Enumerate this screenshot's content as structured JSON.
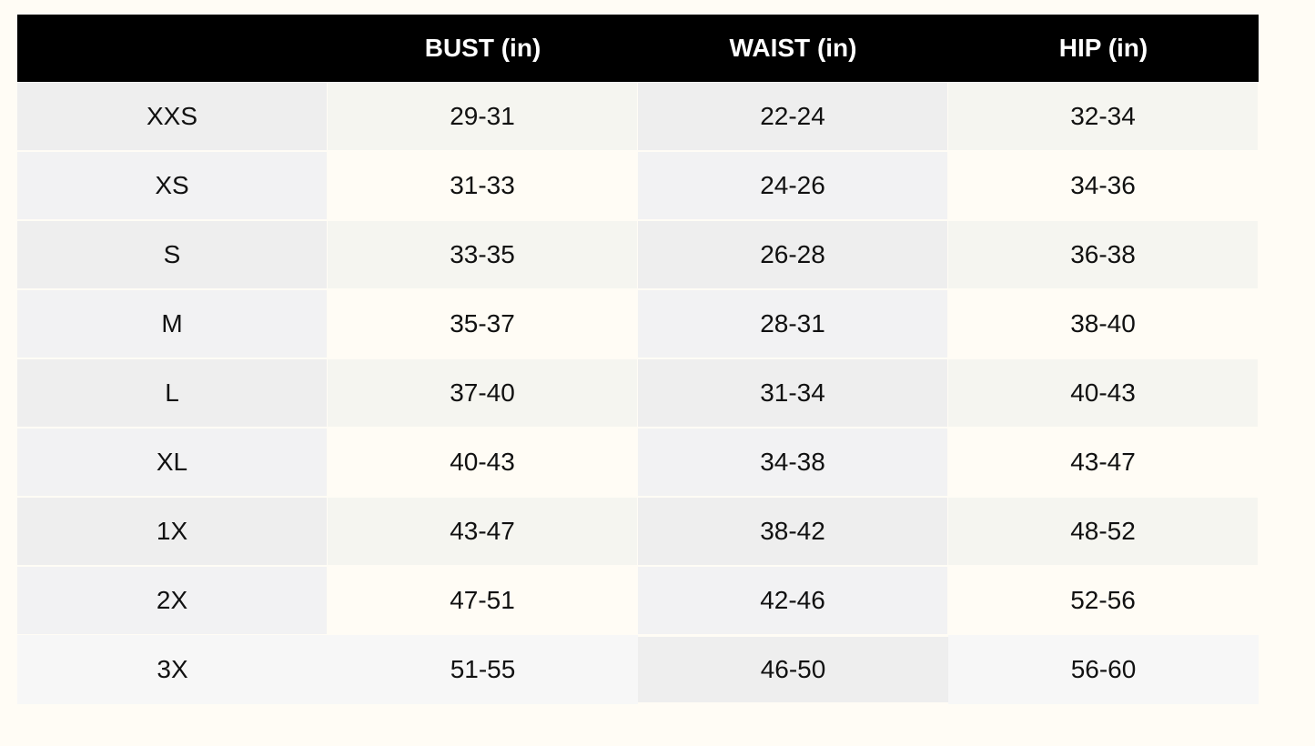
{
  "headers": [
    "",
    "BUST (in)",
    "WAIST (in)",
    "HIP (in)"
  ],
  "rows": [
    [
      "XXS",
      "29-31",
      "22-24",
      "32-34"
    ],
    [
      "XS",
      "31-33",
      "24-26",
      "34-36"
    ],
    [
      "S",
      "33-35",
      "26-28",
      "36-38"
    ],
    [
      "M",
      "35-37",
      "28-31",
      "38-40"
    ],
    [
      "L",
      "37-40",
      "31-34",
      "40-43"
    ],
    [
      "XL",
      "40-43",
      "34-38",
      "43-47"
    ],
    [
      "1X",
      "43-47",
      "38-42",
      "48-52"
    ],
    [
      "2X",
      "47-51",
      "42-46",
      "52-56"
    ],
    [
      "3X",
      "51-55",
      "46-50",
      "56-60"
    ]
  ]
}
